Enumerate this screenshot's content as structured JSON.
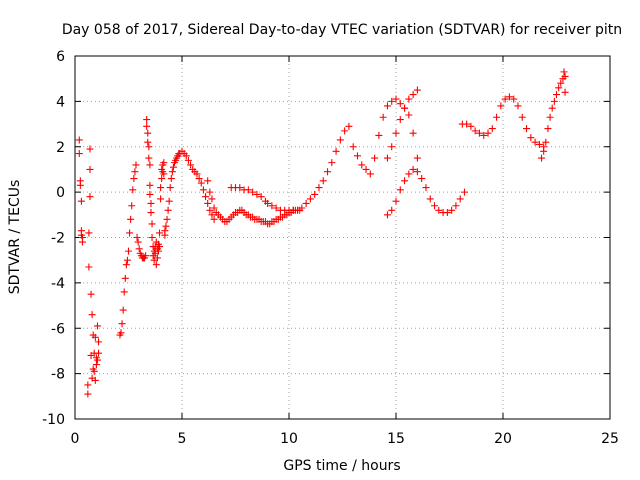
{
  "chart_data": {
    "type": "scatter",
    "title": "Day 058 of 2017, Sidereal Day-to-day VTEC variation (SDTVAR) for receiver pitn",
    "xlabel": "GPS time / hours",
    "ylabel": "SDTVAR / TECUs",
    "xlim": [
      0,
      25
    ],
    "ylim": [
      -10,
      6
    ],
    "xticks": [
      0,
      5,
      10,
      15,
      20,
      25
    ],
    "yticks": [
      -10,
      -8,
      -6,
      -4,
      -2,
      0,
      2,
      4,
      6
    ],
    "xtick_labels": [
      "0",
      "5",
      "10",
      "15",
      "20",
      "25"
    ],
    "ytick_labels": [
      "-10",
      "-8",
      "-6",
      "-4",
      "-2",
      "0",
      "2",
      "4",
      "6"
    ],
    "grid": true,
    "marker": "+",
    "color": "#ff0000",
    "series": [
      {
        "name": "SDTVAR",
        "x": [
          0.2,
          0.2,
          0.25,
          0.25,
          0.3,
          0.3,
          0.3,
          0.35,
          0.35,
          0.6,
          0.6,
          0.65,
          0.65,
          0.7,
          0.7,
          0.7,
          0.75,
          0.75,
          0.8,
          0.8,
          0.85,
          0.85,
          0.9,
          0.9,
          0.95,
          0.95,
          1.0,
          1.0,
          1.05,
          1.05,
          1.1,
          1.1,
          2.1,
          2.15,
          2.2,
          2.25,
          2.3,
          2.35,
          2.4,
          2.45,
          2.5,
          2.55,
          2.6,
          2.65,
          2.7,
          2.75,
          2.8,
          2.85,
          2.9,
          2.95,
          3.0,
          3.05,
          3.1,
          3.15,
          3.2,
          3.25,
          3.3,
          3.35,
          3.35,
          3.4,
          3.4,
          3.45,
          3.45,
          3.5,
          3.5,
          3.5,
          3.55,
          3.55,
          3.6,
          3.6,
          3.65,
          3.65,
          3.7,
          3.7,
          3.75,
          3.75,
          3.8,
          3.8,
          3.85,
          3.85,
          3.9,
          3.9,
          3.95,
          3.95,
          4.0,
          4.0,
          4.05,
          4.05,
          4.1,
          4.1,
          4.15,
          4.15,
          4.2,
          4.2,
          4.25,
          4.3,
          4.35,
          4.4,
          4.45,
          4.5,
          4.55,
          4.6,
          4.65,
          4.7,
          4.75,
          4.8,
          4.85,
          4.9,
          5.0,
          5.1,
          5.2,
          5.3,
          5.4,
          5.5,
          5.6,
          5.7,
          5.8,
          5.9,
          6.0,
          6.1,
          6.2,
          6.3,
          6.4,
          6.5,
          6.2,
          6.3,
          6.4,
          6.5,
          6.6,
          6.7,
          6.8,
          6.9,
          7.0,
          7.1,
          7.2,
          7.3,
          7.4,
          7.5,
          7.6,
          7.7,
          7.8,
          7.9,
          8.0,
          8.1,
          8.2,
          8.3,
          8.4,
          8.5,
          8.6,
          8.7,
          8.8,
          8.9,
          9.0,
          9.1,
          9.2,
          9.3,
          9.4,
          9.5,
          9.6,
          9.7,
          9.8,
          9.9,
          10.0,
          10.1,
          10.2,
          10.3,
          10.4,
          10.5,
          7.3,
          7.5,
          7.7,
          7.9,
          8.1,
          8.3,
          8.5,
          8.7,
          8.9,
          9.0,
          9.2,
          9.4,
          9.6,
          9.8,
          10.0,
          10.2,
          10.4,
          10.6,
          10.8,
          11.0,
          11.2,
          11.4,
          11.6,
          11.8,
          12.0,
          12.2,
          12.4,
          12.6,
          12.8,
          13.0,
          13.2,
          13.4,
          13.6,
          13.8,
          14.0,
          14.2,
          14.4,
          14.6,
          14.8,
          15.0,
          15.2,
          15.4,
          15.6,
          15.8,
          16.0,
          14.6,
          14.8,
          15.0,
          15.2,
          15.4,
          15.6,
          15.8,
          16.0,
          16.2,
          16.4,
          16.6,
          16.8,
          17.0,
          17.2,
          17.4,
          17.6,
          17.8,
          18.0,
          18.2,
          14.6,
          14.8,
          15.0,
          15.2,
          15.4,
          15.6,
          15.8,
          16.0,
          18.1,
          18.3,
          18.5,
          18.7,
          18.9,
          19.1,
          19.3,
          19.5,
          19.7,
          19.9,
          20.1,
          20.3,
          20.5,
          20.7,
          20.9,
          21.1,
          21.3,
          21.5,
          21.7,
          21.9,
          21.8,
          21.9,
          22.0,
          22.1,
          22.2,
          22.3,
          22.4,
          22.5,
          22.6,
          22.7,
          22.8,
          22.85,
          22.9,
          22.9
        ],
        "y": [
          2.3,
          1.7,
          0.5,
          0.3,
          -0.4,
          -1.7,
          -1.9,
          -2.0,
          -2.2,
          -8.9,
          -8.5,
          -3.3,
          -1.8,
          -0.2,
          1.0,
          1.9,
          -4.5,
          -7.2,
          -8.2,
          -5.4,
          -7.8,
          -6.3,
          -7.9,
          -7.1,
          -8.3,
          -6.4,
          -7.6,
          -7.3,
          -5.9,
          -7.4,
          -6.6,
          -7.1,
          -6.3,
          -6.2,
          -5.8,
          -5.2,
          -4.4,
          -3.8,
          -3.2,
          -3.0,
          -2.6,
          -1.8,
          -1.2,
          -0.6,
          0.1,
          0.6,
          0.9,
          1.2,
          -2.0,
          -2.2,
          -2.5,
          -2.7,
          -2.8,
          -2.9,
          -2.9,
          -2.9,
          -2.8,
          3.2,
          2.9,
          2.6,
          2.2,
          2.0,
          1.5,
          1.2,
          0.3,
          -0.1,
          -0.5,
          -0.9,
          -1.4,
          -2.0,
          -2.4,
          -2.8,
          -2.6,
          -3.0,
          -2.4,
          -2.7,
          -3.2,
          -2.2,
          -2.5,
          -2.9,
          -2.3,
          -2.6,
          -2.4,
          -1.8,
          -0.3,
          0.2,
          0.6,
          1.0,
          1.2,
          0.9,
          1.3,
          0.8,
          -1.9,
          -1.7,
          -1.5,
          -1.2,
          -0.8,
          -0.4,
          0.2,
          0.6,
          0.9,
          1.1,
          1.3,
          1.4,
          1.5,
          1.6,
          1.7,
          1.7,
          1.8,
          1.7,
          1.6,
          1.4,
          1.2,
          1.0,
          0.9,
          0.8,
          0.6,
          0.4,
          0.1,
          -0.2,
          -0.5,
          -0.8,
          -1.0,
          -1.2,
          0.5,
          0.0,
          -0.3,
          -0.7,
          -0.9,
          -1.0,
          -1.1,
          -1.2,
          -1.3,
          -1.3,
          -1.2,
          -1.1,
          -1.0,
          -0.9,
          -0.9,
          -0.8,
          -0.8,
          -0.9,
          -1.0,
          -1.0,
          -1.1,
          -1.1,
          -1.2,
          -1.2,
          -1.2,
          -1.3,
          -1.3,
          -1.3,
          -1.4,
          -1.4,
          -1.3,
          -1.3,
          -1.2,
          -1.2,
          -1.1,
          -1.1,
          -1.0,
          -1.0,
          -0.9,
          -0.9,
          -0.8,
          -0.8,
          -0.8,
          -0.8,
          0.2,
          0.2,
          0.2,
          0.1,
          0.1,
          0.0,
          -0.1,
          -0.2,
          -0.4,
          -0.5,
          -0.6,
          -0.7,
          -0.8,
          -0.8,
          -0.8,
          -0.8,
          -0.8,
          -0.7,
          -0.5,
          -0.3,
          -0.1,
          0.2,
          0.5,
          0.9,
          1.3,
          1.8,
          2.3,
          2.7,
          2.9,
          2.0,
          1.6,
          1.2,
          1.0,
          0.8,
          1.5,
          2.5,
          3.3,
          3.8,
          4.0,
          4.1,
          3.9,
          3.7,
          3.4,
          2.6,
          1.5,
          -1.0,
          -0.8,
          -0.4,
          0.1,
          0.5,
          0.8,
          1.0,
          0.9,
          0.6,
          0.2,
          -0.3,
          -0.6,
          -0.8,
          -0.9,
          -0.9,
          -0.8,
          -0.6,
          -0.3,
          0.0,
          1.5,
          2.0,
          2.6,
          3.2,
          3.7,
          4.1,
          4.3,
          4.5,
          3.0,
          3.0,
          2.9,
          2.7,
          2.6,
          2.5,
          2.6,
          2.8,
          3.3,
          3.8,
          4.1,
          4.2,
          4.1,
          3.8,
          3.3,
          2.8,
          2.4,
          2.2,
          2.1,
          2.0,
          1.5,
          1.8,
          2.2,
          2.8,
          3.3,
          3.7,
          4.0,
          4.3,
          4.6,
          4.8,
          5.0,
          5.3,
          5.1,
          4.4
        ]
      }
    ]
  }
}
